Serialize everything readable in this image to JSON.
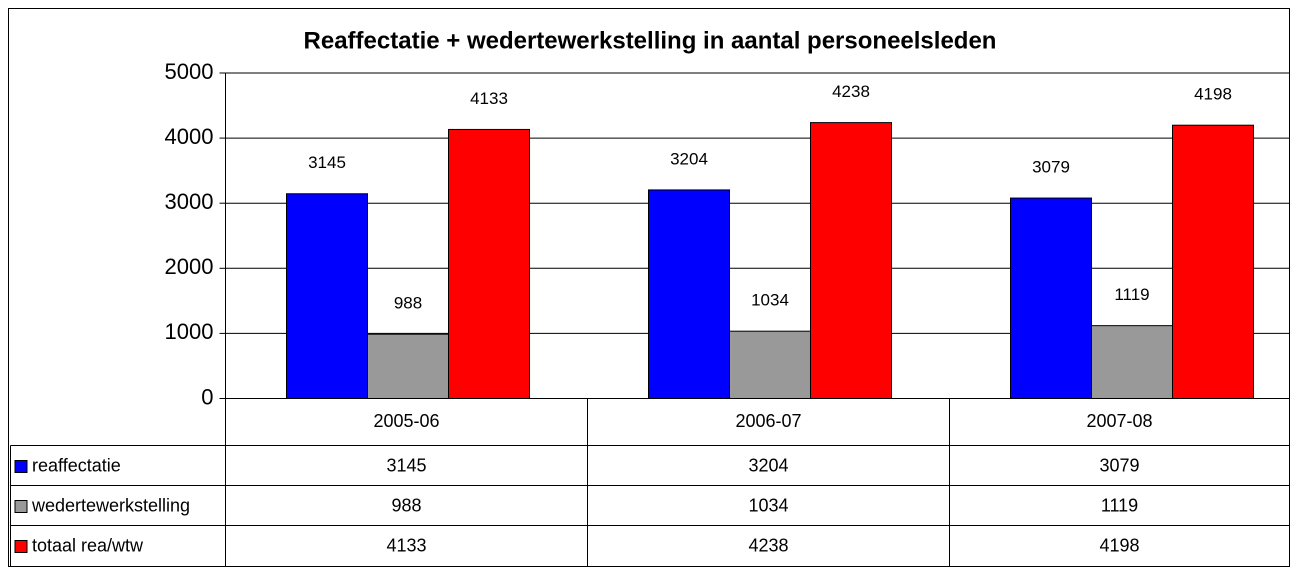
{
  "chart_data": {
    "type": "bar",
    "title": "Reaffectatie + wedertewerkstelling in aantal personeelsleden",
    "categories": [
      "2005-06",
      "2006-07",
      "2007-08"
    ],
    "series": [
      {
        "name": "reaffectatie",
        "color": "#0000ff",
        "values": [
          3145,
          3204,
          3079
        ]
      },
      {
        "name": "wedertewerkstelling",
        "color": "#999999",
        "values": [
          988,
          1034,
          1119
        ]
      },
      {
        "name": "totaal rea/wtw",
        "color": "#ff0000",
        "values": [
          4133,
          4238,
          4198
        ]
      }
    ],
    "ylim": [
      0,
      5000
    ],
    "yticks": [
      0,
      1000,
      2000,
      3000,
      4000,
      5000
    ],
    "grid": true,
    "data_table": true
  }
}
